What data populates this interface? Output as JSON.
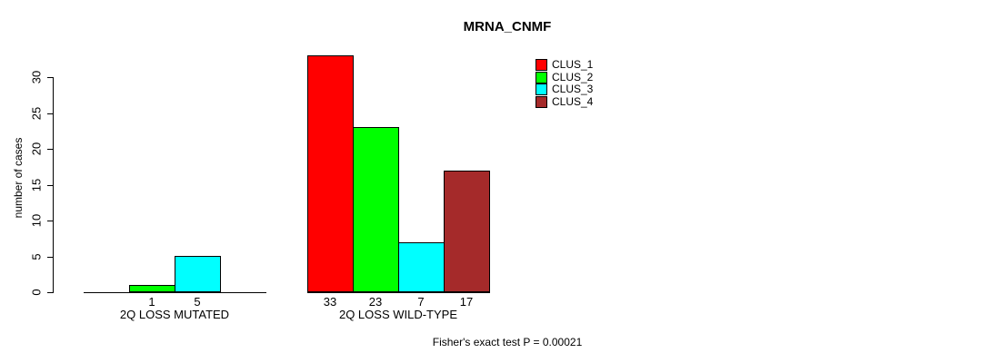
{
  "chart_data": {
    "type": "bar",
    "title": "MRNA_CNMF",
    "ylabel": "number of cases",
    "ylim": [
      0,
      30
    ],
    "yticks": [
      0,
      5,
      10,
      15,
      20,
      25,
      30
    ],
    "grid": false,
    "categories": [
      "2Q LOSS MUTATED",
      "2Q LOSS WILD-TYPE"
    ],
    "series": [
      {
        "name": "CLUS_1",
        "color": "#FF0000",
        "values": [
          0,
          33
        ]
      },
      {
        "name": "CLUS_2",
        "color": "#00FF00",
        "values": [
          1,
          23
        ]
      },
      {
        "name": "CLUS_3",
        "color": "#00FFFF",
        "values": [
          5,
          7
        ]
      },
      {
        "name": "CLUS_4",
        "color": "#A52A2A",
        "values": [
          0,
          17
        ]
      }
    ],
    "bar_value_labels": {
      "group_0": [
        "1",
        "5"
      ],
      "group_1": [
        "33",
        "23",
        "7",
        "17"
      ],
      "rule": "shown only for non-zero bars"
    },
    "legend": {
      "position": "top-right",
      "entries": [
        "CLUS_1",
        "CLUS_2",
        "CLUS_3",
        "CLUS_4"
      ]
    },
    "annotation": "Fisher's exact test P = 0.00021"
  }
}
